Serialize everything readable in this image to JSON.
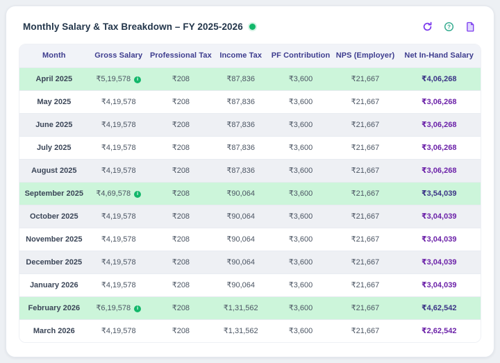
{
  "colors": {
    "page-bg": "#edf0f4",
    "card-border": "#e4e8ee",
    "title-color": "#22354a",
    "status-green": "#12b76a",
    "accent-purple": "#7c3aed",
    "help-teal": "#2fa98c",
    "header-bg": "#f1f3f8",
    "header-text": "#3d3c8e",
    "stripe-bg": "#eef0f4",
    "highlight-bg": "#ccf5da",
    "row-divider": "#e8ebf1",
    "month-color": "#3a4557",
    "value-color": "#4b5563",
    "net-purple": "#6b21a8",
    "net-purple-dark": "#3b3486"
  },
  "card": {
    "title": "Monthly Salary & Tax Breakdown – FY 2025-2026",
    "toolbar": {
      "refresh_icon": "refresh",
      "help_icon": "help",
      "report_icon": "document",
      "help_glyph": "?"
    }
  },
  "table": {
    "columns": [
      "Month",
      "Gross Salary",
      "Professional Tax",
      "Income Tax",
      "PF Contribution",
      "NPS (Employer)",
      "Net In-Hand Salary"
    ],
    "info_icon_glyph": "i",
    "rows": [
      {
        "month": "April 2025",
        "gross": "₹5,19,578",
        "has_info": true,
        "prof_tax": "₹208",
        "income_tax": "₹87,836",
        "pf": "₹3,600",
        "nps": "₹21,667",
        "net": "₹4,06,268",
        "variant": "highlight"
      },
      {
        "month": "May 2025",
        "gross": "₹4,19,578",
        "has_info": false,
        "prof_tax": "₹208",
        "income_tax": "₹87,836",
        "pf": "₹3,600",
        "nps": "₹21,667",
        "net": "₹3,06,268",
        "variant": "white"
      },
      {
        "month": "June 2025",
        "gross": "₹4,19,578",
        "has_info": false,
        "prof_tax": "₹208",
        "income_tax": "₹87,836",
        "pf": "₹3,600",
        "nps": "₹21,667",
        "net": "₹3,06,268",
        "variant": "gray"
      },
      {
        "month": "July 2025",
        "gross": "₹4,19,578",
        "has_info": false,
        "prof_tax": "₹208",
        "income_tax": "₹87,836",
        "pf": "₹3,600",
        "nps": "₹21,667",
        "net": "₹3,06,268",
        "variant": "white"
      },
      {
        "month": "August 2025",
        "gross": "₹4,19,578",
        "has_info": false,
        "prof_tax": "₹208",
        "income_tax": "₹87,836",
        "pf": "₹3,600",
        "nps": "₹21,667",
        "net": "₹3,06,268",
        "variant": "gray"
      },
      {
        "month": "September 2025",
        "gross": "₹4,69,578",
        "has_info": true,
        "prof_tax": "₹208",
        "income_tax": "₹90,064",
        "pf": "₹3,600",
        "nps": "₹21,667",
        "net": "₹3,54,039",
        "variant": "highlight"
      },
      {
        "month": "October 2025",
        "gross": "₹4,19,578",
        "has_info": false,
        "prof_tax": "₹208",
        "income_tax": "₹90,064",
        "pf": "₹3,600",
        "nps": "₹21,667",
        "net": "₹3,04,039",
        "variant": "gray"
      },
      {
        "month": "November 2025",
        "gross": "₹4,19,578",
        "has_info": false,
        "prof_tax": "₹208",
        "income_tax": "₹90,064",
        "pf": "₹3,600",
        "nps": "₹21,667",
        "net": "₹3,04,039",
        "variant": "white"
      },
      {
        "month": "December 2025",
        "gross": "₹4,19,578",
        "has_info": false,
        "prof_tax": "₹208",
        "income_tax": "₹90,064",
        "pf": "₹3,600",
        "nps": "₹21,667",
        "net": "₹3,04,039",
        "variant": "gray"
      },
      {
        "month": "January 2026",
        "gross": "₹4,19,578",
        "has_info": false,
        "prof_tax": "₹208",
        "income_tax": "₹90,064",
        "pf": "₹3,600",
        "nps": "₹21,667",
        "net": "₹3,04,039",
        "variant": "white"
      },
      {
        "month": "February 2026",
        "gross": "₹6,19,578",
        "has_info": true,
        "prof_tax": "₹208",
        "income_tax": "₹1,31,562",
        "pf": "₹3,600",
        "nps": "₹21,667",
        "net": "₹4,62,542",
        "variant": "highlight"
      },
      {
        "month": "March 2026",
        "gross": "₹4,19,578",
        "has_info": false,
        "prof_tax": "₹208",
        "income_tax": "₹1,31,562",
        "pf": "₹3,600",
        "nps": "₹21,667",
        "net": "₹2,62,542",
        "variant": "white"
      }
    ]
  }
}
